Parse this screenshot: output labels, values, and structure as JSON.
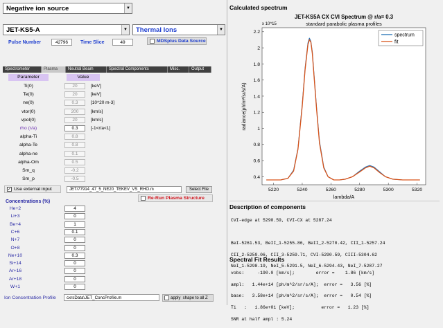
{
  "header": {
    "mode_select": "Negative ion source",
    "machine_select": "JET-KS5-A",
    "ion_select": "Thermal Ions"
  },
  "pulse": {
    "label": "Pulse Number",
    "value": "42796"
  },
  "time_slice": {
    "label": "Time Slice",
    "value": "49"
  },
  "mdsplus": {
    "label": "MDSplus Data Source"
  },
  "tabs": [
    "Spectrometer",
    "Plasma",
    "Neutral Beam",
    "Spectral Components",
    "Misc.",
    "Output"
  ],
  "table_headers": {
    "param": "Parameter",
    "value": "Value"
  },
  "params": [
    {
      "name": "Ti(0)",
      "value": "20",
      "unit": "[keV]"
    },
    {
      "name": "Te(0)",
      "value": "20",
      "unit": "[keV]"
    },
    {
      "name": "ne(0)",
      "value": "0.3",
      "unit": "[10^20 m-3]"
    },
    {
      "name": "vtor(0)",
      "value": "200",
      "unit": "[km/s]"
    },
    {
      "name": "vpol(0)",
      "value": "20",
      "unit": "[km/s]"
    },
    {
      "name": "rho (r/a)",
      "value": "0.3",
      "unit": "[-1<r/a<1]"
    },
    {
      "name": "alpha-Ti",
      "value": "0.8",
      "unit": ""
    },
    {
      "name": "alpha-Te",
      "value": "0.8",
      "unit": ""
    },
    {
      "name": "alpha-ne",
      "value": "0.1",
      "unit": ""
    },
    {
      "name": "alpha-Om",
      "value": "0.5",
      "unit": ""
    },
    {
      "name": "Sm_q",
      "value": "-0.2",
      "unit": ""
    },
    {
      "name": "Sm_p",
      "value": "-0.5",
      "unit": ""
    }
  ],
  "external": {
    "checkbox_label": "Use external input",
    "file": "JET/77914_47_5_NE20_TEKEV_VS_RHO.m",
    "select_file": "Select File",
    "rerun": "Re-Run Plasma Structure"
  },
  "concentrations": {
    "title": "Concentrations (%)",
    "items": [
      {
        "ion": "He+2",
        "value": "4"
      },
      {
        "ion": "Li+3",
        "value": "0"
      },
      {
        "ion": "Be+4",
        "value": "1"
      },
      {
        "ion": "C+6",
        "value": "0.1"
      },
      {
        "ion": "N+7",
        "value": "0"
      },
      {
        "ion": "O+8",
        "value": "0"
      },
      {
        "ion": "Ne+10",
        "value": "0.3"
      },
      {
        "ion": "Si+14",
        "value": "0"
      },
      {
        "ion": "Ar+16",
        "value": "0"
      },
      {
        "ion": "Ar+18",
        "value": "0"
      },
      {
        "ion": "W+1",
        "value": "0"
      }
    ]
  },
  "profile": {
    "label": "Ion Concentration Profile",
    "value": "cxrsData\\JET_ConcProfile.m",
    "apply": "apply  shape to all Z"
  },
  "right": {
    "calc_title": "Calculated spectrum",
    "desc_title": "Description of components",
    "fit_title": "Spectral Fit Results",
    "desc_lines": [
      "CVI-edge at 5290.59, CVI-CX at 5287.24",
      "",
      "BeI-5261.53, BeII_1-5255.86, BeII_2-5270.42, CII_1-5257.24",
      "CII_2-5259.06, CII_3-5259.71, CVI-5290.59, CIII-5304.62",
      "NeI_1-5298.19, NeI_5-5291.5, NeI_6-5294.43, NeI_7-5287.27"
    ],
    "fit_lines": [
      "vobs:     -190.0 [km/s];        error =    1.86 [km/s]",
      "ampl:   1.44e+14 [ph/m^2/sr/s/A];  error =   3.56 [%]",
      "base:   3.58e+14 [ph/m^2/sr/s/A];  error =   0.54 [%]",
      "Ti   :   1.86e+01 [keV];          error =   1.23 [%]",
      "SNR at half ampl : 5.24"
    ]
  },
  "chart_data": {
    "type": "line",
    "title": "JET-KS5A CX CVI Spectrum @ r/a= 0.3",
    "subtitle": "standard parabolic plasma profiles",
    "xlabel": "lambda/A",
    "ylabel": "radiance(ph/m²/sr/s/A)",
    "exponent": "x 10^15",
    "xlim": [
      5212,
      5326
    ],
    "ylim": [
      0.3,
      2.25
    ],
    "xticks": [
      5220,
      5240,
      5260,
      5280,
      5300,
      5320
    ],
    "yticks": [
      0.4,
      0.6,
      0.8,
      1.0,
      1.2,
      1.4,
      1.6,
      1.8,
      2.0,
      2.2
    ],
    "ytick_labels": [
      "0.4",
      "0.6",
      "0.8",
      "1",
      "1.2",
      "1.4",
      "1.6",
      "1.8",
      "2",
      "2.2"
    ],
    "legend_position": "top-right",
    "series": [
      {
        "name": "spectrum",
        "color": "#1f6fb5",
        "x": [
          5215,
          5225,
          5230,
          5234,
          5237,
          5240,
          5242,
          5244,
          5245,
          5246,
          5247,
          5248,
          5250,
          5252,
          5255,
          5258,
          5262,
          5266,
          5270,
          5275,
          5280,
          5284,
          5287,
          5290,
          5294,
          5298,
          5303,
          5310,
          5318,
          5322
        ],
        "y": [
          0.36,
          0.36,
          0.38,
          0.48,
          0.75,
          1.3,
          1.75,
          2.06,
          2.12,
          2.08,
          1.95,
          1.72,
          1.25,
          0.84,
          0.52,
          0.4,
          0.36,
          0.36,
          0.37,
          0.4,
          0.47,
          0.52,
          0.54,
          0.52,
          0.46,
          0.4,
          0.37,
          0.36,
          0.36,
          0.36
        ]
      },
      {
        "name": "fit",
        "color": "#d9541a",
        "x": [
          5215,
          5225,
          5230,
          5234,
          5237,
          5240,
          5242,
          5244,
          5245,
          5246,
          5247,
          5248,
          5250,
          5252,
          5255,
          5258,
          5262,
          5266,
          5270,
          5275,
          5280,
          5284,
          5287,
          5290,
          5294,
          5298,
          5303,
          5310,
          5318,
          5322
        ],
        "y": [
          0.36,
          0.36,
          0.38,
          0.47,
          0.74,
          1.28,
          1.73,
          2.04,
          2.1,
          2.07,
          1.93,
          1.7,
          1.23,
          0.82,
          0.51,
          0.4,
          0.36,
          0.36,
          0.37,
          0.4,
          0.46,
          0.51,
          0.53,
          0.51,
          0.45,
          0.4,
          0.37,
          0.36,
          0.36,
          0.36
        ]
      }
    ]
  }
}
